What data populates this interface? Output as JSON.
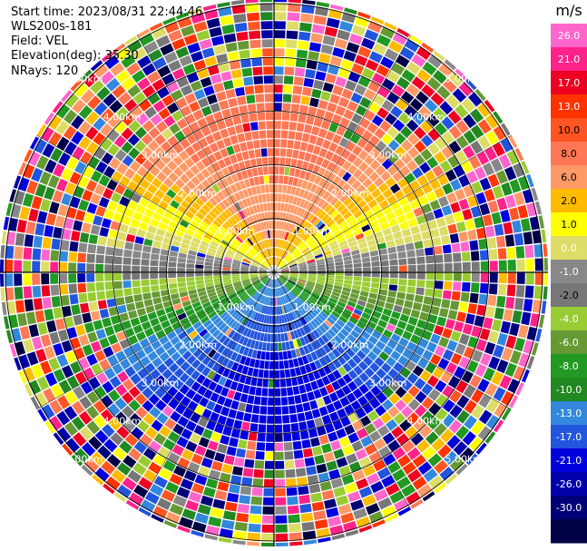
{
  "header": {
    "start_time": "Start time: 2023/08/31 22:44:46",
    "instrument": "WLS200s-181",
    "field": "Field: VEL",
    "elevation": "Elevation(deg): 35.30",
    "nrays": "NRays: 120"
  },
  "chart_data": {
    "type": "heatmap",
    "projection": "polar-ppi",
    "field": "VEL",
    "units": "m/s",
    "nrays": 120,
    "range_rings_km": [
      1.0,
      2.0,
      3.0,
      4.0,
      5.0
    ],
    "ring_label": "km",
    "colorbar": {
      "label": "m/s",
      "ticks": [
        "26.0",
        "21.0",
        "17.0",
        "13.0",
        "10.0",
        "8.0",
        "6.0",
        "2.0",
        "1.0",
        "0.0",
        "-1.0",
        "-2.0",
        "-4.0",
        "-6.0",
        "-8.0",
        "-10.0",
        "-13.0",
        "-17.0",
        "-21.0",
        "-26.0",
        "-30.0"
      ],
      "bins": [
        {
          "color": "#ff66cc"
        },
        {
          "color": "#ff2288"
        },
        {
          "color": "#ee0022"
        },
        {
          "color": "#ff3300"
        },
        {
          "color": "#ff5522"
        },
        {
          "color": "#ff7755"
        },
        {
          "color": "#ff9966"
        },
        {
          "color": "#ffbb00"
        },
        {
          "color": "#ffff00"
        },
        {
          "color": "#dddd66"
        },
        {
          "color": "#888888"
        },
        {
          "color": "#777777"
        },
        {
          "color": "#99cc33"
        },
        {
          "color": "#669933"
        },
        {
          "color": "#229922"
        },
        {
          "color": "#228822"
        },
        {
          "color": "#3388dd"
        },
        {
          "color": "#2255dd"
        },
        {
          "color": "#0000dd"
        },
        {
          "color": "#0000aa"
        },
        {
          "color": "#000077"
        },
        {
          "color": "#000044"
        }
      ]
    }
  }
}
